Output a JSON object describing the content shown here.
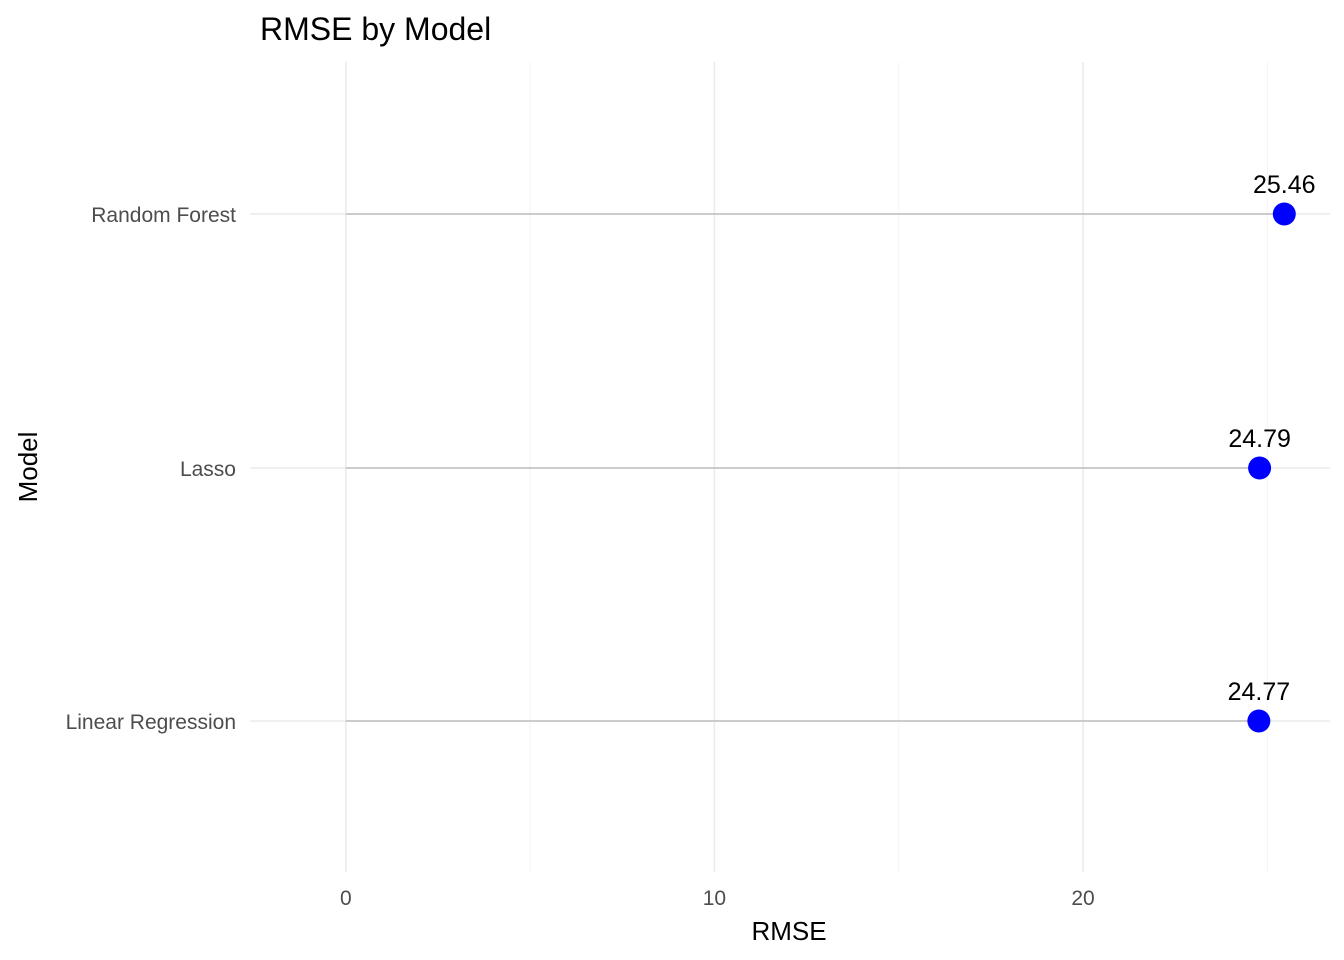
{
  "chart_data": {
    "type": "lollipop",
    "title": "RMSE by Model",
    "xlabel": "RMSE",
    "ylabel": "Model",
    "orientation": "horizontal",
    "categories": [
      "Linear Regression",
      "Lasso",
      "Random Forest"
    ],
    "values": [
      24.77,
      24.79,
      25.46
    ],
    "data_labels": [
      "24.77",
      "24.79",
      "25.46"
    ],
    "x_ticks": [
      0,
      10,
      20
    ],
    "x_tick_labels": [
      "0",
      "10",
      "20"
    ],
    "xlim": [
      -2.6,
      26.7
    ],
    "grid": true,
    "legend": "none",
    "colors": {
      "point": "#0000ff",
      "stem": "#bebebe",
      "grid_major": "#ebebeb",
      "grid_minor": "#f5f5f5"
    }
  }
}
